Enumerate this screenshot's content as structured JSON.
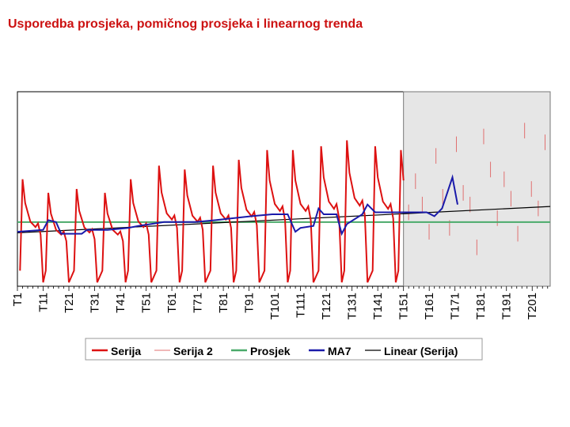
{
  "page": {
    "title": "Usporedba prosjeka, pomičnog prosjeka i linearnog trenda"
  },
  "chart_data": {
    "type": "line",
    "title": "Usporedba prosjeka, pomičnog prosjeka i linearnog trenda",
    "xlabel": "",
    "ylabel": "",
    "x_range": [
      1,
      208
    ],
    "y_range": [
      0,
      100
    ],
    "tick_labels": [
      "T1",
      "T11",
      "T21",
      "T31",
      "T41",
      "T51",
      "T61",
      "T71",
      "T81",
      "T91",
      "T101",
      "T111",
      "T121",
      "T131",
      "T141",
      "T151",
      "T161",
      "T171",
      "T181",
      "T191",
      "T201"
    ],
    "tick_positions": [
      1,
      11,
      21,
      31,
      41,
      51,
      61,
      71,
      81,
      91,
      101,
      111,
      121,
      131,
      141,
      151,
      161,
      171,
      181,
      191,
      201
    ],
    "forecast_region": {
      "start": 151,
      "end": 208
    },
    "series_style": {
      "Serija": {
        "color": "#dd1111"
      },
      "Serija 2": {
        "color": "#e07070"
      },
      "Prosjek": {
        "color": "#4aaa6a"
      },
      "MA7": {
        "color": "#1a1aaa"
      },
      "Linear (Serija)": {
        "color": "#000000"
      }
    },
    "series": [
      {
        "name": "Serija",
        "pattern": {
          "period": 10.5,
          "values": [
            8,
            55,
            45,
            35,
            32,
            34,
            28,
            2
          ]
        },
        "peak_values": [
          {
            "x": 3,
            "y": 55
          },
          {
            "x": 13,
            "y": 48
          },
          {
            "x": 24,
            "y": 50
          },
          {
            "x": 35,
            "y": 48
          },
          {
            "x": 45,
            "y": 55
          },
          {
            "x": 56,
            "y": 62
          },
          {
            "x": 66,
            "y": 60
          },
          {
            "x": 77,
            "y": 62
          },
          {
            "x": 87,
            "y": 65
          },
          {
            "x": 98,
            "y": 70
          },
          {
            "x": 108,
            "y": 70
          },
          {
            "x": 119,
            "y": 72
          },
          {
            "x": 129,
            "y": 75
          },
          {
            "x": 140,
            "y": 72
          },
          {
            "x": 150,
            "y": 70
          }
        ],
        "range": [
          1,
          151
        ]
      },
      {
        "name": "Serija 2",
        "style": "sparse vertical ticks",
        "range": [
          151,
          208
        ],
        "approx_values": [
          38,
          54,
          42,
          28,
          67,
          46,
          30,
          73,
          48,
          42,
          20,
          77,
          60,
          35,
          55,
          45,
          27,
          80,
          50,
          40,
          74
        ]
      },
      {
        "name": "Prosjek",
        "value": 33,
        "range": [
          1,
          208
        ]
      },
      {
        "name": "MA7",
        "points": [
          [
            1,
            28
          ],
          [
            11,
            29
          ],
          [
            13,
            34
          ],
          [
            16,
            33
          ],
          [
            18,
            27
          ],
          [
            26,
            27
          ],
          [
            28,
            29
          ],
          [
            33,
            29
          ],
          [
            36,
            29
          ],
          [
            44,
            30
          ],
          [
            48,
            31
          ],
          [
            53,
            32
          ],
          [
            58,
            33
          ],
          [
            70,
            33
          ],
          [
            78,
            34
          ],
          [
            85,
            35
          ],
          [
            92,
            36
          ],
          [
            100,
            37
          ],
          [
            106,
            37
          ],
          [
            109,
            28
          ],
          [
            111,
            30
          ],
          [
            116,
            31
          ],
          [
            118,
            40
          ],
          [
            120,
            37
          ],
          [
            125,
            37
          ],
          [
            127,
            27
          ],
          [
            129,
            32
          ],
          [
            135,
            37
          ],
          [
            137,
            42
          ],
          [
            140,
            38
          ],
          [
            150,
            38
          ],
          [
            160,
            38
          ],
          [
            163,
            36
          ],
          [
            166,
            40
          ],
          [
            170,
            56
          ],
          [
            172,
            42
          ]
        ]
      },
      {
        "name": "Linear (Serija)",
        "endpoints": [
          [
            1,
            27.5
          ],
          [
            208,
            41
          ]
        ]
      }
    ],
    "legend": {
      "position": "bottom",
      "entries": [
        "Serija",
        "Serija 2",
        "Prosjek",
        "MA7",
        "Linear (Serija)"
      ]
    }
  }
}
